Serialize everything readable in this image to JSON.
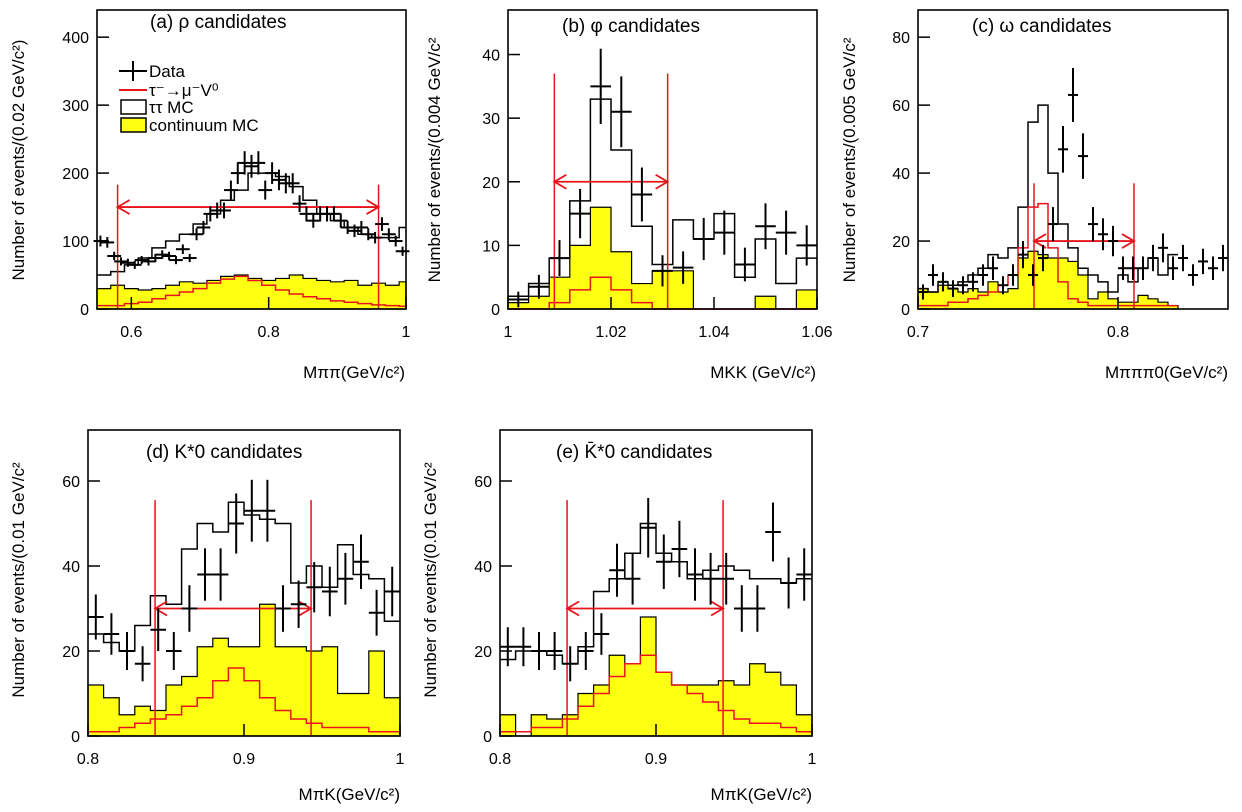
{
  "colors": {
    "data": "#000000",
    "signal_mc": "#e8141c",
    "tautau_mc": "#000000",
    "continuum_fill": "#ffff14",
    "continuum_edge": "#000000",
    "signal_window": "#e8141c"
  },
  "legend": {
    "data_label": "Data",
    "signal_label": "τ⁻→μ⁻V⁰",
    "tautau_label": "ττ MC",
    "continuum_label": "continuum MC"
  },
  "chart_data": [
    {
      "panel": "a",
      "type": "histogram",
      "title": "(a) ρ candidates",
      "xlabel": "Mππ(GeV/c²)",
      "ylabel": "Number of events/(0.02 GeV/c²)",
      "xlim": [
        0.55,
        1.0
      ],
      "ylim": [
        0,
        440
      ],
      "bin_width": 0.02,
      "xticks": [
        "0.6",
        "0.8",
        "1"
      ],
      "yticks": [
        "0",
        "100",
        "200",
        "300",
        "400"
      ],
      "signal_window": [
        0.58,
        0.96
      ],
      "window_arrow_y": 150,
      "data": {
        "x": [
          0.555,
          0.565,
          0.575,
          0.585,
          0.595,
          0.605,
          0.615,
          0.625,
          0.635,
          0.645,
          0.655,
          0.665,
          0.675,
          0.685,
          0.695,
          0.705,
          0.715,
          0.725,
          0.735,
          0.745,
          0.755,
          0.765,
          0.775,
          0.785,
          0.795,
          0.805,
          0.815,
          0.825,
          0.835,
          0.845,
          0.855,
          0.865,
          0.875,
          0.885,
          0.895,
          0.905,
          0.915,
          0.925,
          0.935,
          0.945,
          0.955,
          0.965,
          0.975,
          0.985,
          0.995
        ],
        "y": [
          100,
          98,
          78,
          70,
          68,
          65,
          72,
          70,
          75,
          80,
          78,
          72,
          88,
          75,
          110,
          120,
          140,
          145,
          145,
          175,
          200,
          215,
          210,
          215,
          175,
          200,
          190,
          185,
          185,
          155,
          140,
          130,
          140,
          140,
          140,
          130,
          120,
          115,
          120,
          110,
          105,
          125,
          110,
          100,
          85
        ]
      },
      "tautau_mc": [
        50,
        55,
        65,
        75,
        90,
        100,
        110,
        125,
        140,
        160,
        175,
        200,
        200,
        195,
        180,
        160,
        140,
        130,
        120,
        110,
        105,
        105,
        120
      ],
      "continuum_mc": [
        30,
        35,
        30,
        28,
        30,
        35,
        40,
        38,
        42,
        48,
        50,
        45,
        42,
        45,
        50,
        45,
        42,
        40,
        42,
        35,
        38,
        35,
        40
      ],
      "signal_mc": [
        5,
        5,
        8,
        10,
        15,
        20,
        25,
        30,
        38,
        44,
        48,
        42,
        35,
        28,
        22,
        18,
        15,
        12,
        10,
        8,
        6,
        5,
        4
      ]
    },
    {
      "panel": "b",
      "type": "histogram",
      "title": "(b) φ candidates",
      "xlabel": "MKK (GeV/c²)",
      "ylabel": "Number of events/(0.004 GeV/c²",
      "xlim": [
        1.0,
        1.06
      ],
      "ylim": [
        0,
        47
      ],
      "bin_width": 0.004,
      "xticks": [
        "1",
        "1.02",
        "1.04",
        "1.06"
      ],
      "yticks": [
        "0",
        "10",
        "20",
        "30",
        "40"
      ],
      "signal_window": [
        1.009,
        1.031
      ],
      "window_arrow_y": 20,
      "data": {
        "x": [
          1.002,
          1.006,
          1.01,
          1.014,
          1.018,
          1.022,
          1.026,
          1.03,
          1.034,
          1.038,
          1.042,
          1.046,
          1.05,
          1.054,
          1.058
        ],
        "y": [
          1.5,
          3.5,
          8,
          15,
          35,
          31,
          18,
          6,
          6.5,
          11,
          12,
          7,
          13,
          12,
          10
        ]
      },
      "tautau_mc": [
        2,
        4,
        8,
        17,
        33,
        25,
        13,
        7,
        14,
        11,
        15,
        5,
        11,
        4,
        8
      ],
      "continuum_mc": [
        1,
        2,
        5,
        10,
        16,
        9,
        4,
        6,
        6,
        0,
        0,
        0,
        2,
        0,
        3
      ],
      "signal_mc": [
        0,
        0,
        1,
        3,
        5,
        3,
        1,
        0,
        0,
        0,
        0,
        0,
        0,
        0,
        0
      ]
    },
    {
      "panel": "c",
      "type": "histogram",
      "title": "(c) ω candidates",
      "xlabel": "Mπππ0(GeV/c²)",
      "ylabel": "Number of events/(0.005 GeV/c²",
      "xlim": [
        0.7,
        0.855
      ],
      "ylim": [
        0,
        88
      ],
      "bin_width": 0.005,
      "xticks": [
        "0.7",
        "0.8"
      ],
      "yticks": [
        "0",
        "20",
        "40",
        "60",
        "80"
      ],
      "signal_window": [
        0.758,
        0.808
      ],
      "window_arrow_y": 20,
      "data": {
        "x": [
          0.7025,
          0.7075,
          0.7125,
          0.7175,
          0.7225,
          0.7275,
          0.7325,
          0.7375,
          0.7425,
          0.7475,
          0.7525,
          0.7575,
          0.7625,
          0.7675,
          0.7725,
          0.7775,
          0.7825,
          0.7875,
          0.7925,
          0.7975,
          0.8025,
          0.8075,
          0.8125,
          0.8175,
          0.8225,
          0.8275,
          0.8325,
          0.8375,
          0.8425,
          0.8475,
          0.8525
        ],
        "y": [
          5,
          10,
          8,
          6,
          7,
          8,
          10,
          12,
          7,
          10,
          16,
          10,
          15,
          25,
          47,
          63,
          45,
          25,
          22,
          20,
          12,
          12,
          12,
          15,
          18,
          12,
          15,
          10,
          14,
          12,
          15
        ]
      },
      "tautau_mc": [
        6,
        5,
        8,
        7,
        8,
        10,
        12,
        16,
        15,
        18,
        30,
        55,
        60,
        40,
        25,
        18,
        12,
        10,
        8,
        5,
        10,
        8,
        12,
        15,
        10,
        16
      ],
      "continuum_mc": [
        6,
        5,
        7,
        6,
        5,
        6,
        5,
        8,
        5,
        6,
        15,
        17,
        16,
        15,
        15,
        14,
        10,
        3,
        5,
        3,
        2,
        2,
        4,
        3,
        2,
        1
      ],
      "signal_mc": [
        1,
        1,
        1,
        2,
        2,
        3,
        4,
        5,
        7,
        10,
        18,
        30,
        31,
        18,
        8,
        3,
        2,
        1,
        1,
        1,
        1,
        1,
        1,
        1,
        1,
        1
      ]
    },
    {
      "panel": "d",
      "type": "histogram",
      "title": "(d) K*0 candidates",
      "xlabel": "MπK(GeV/c²)",
      "ylabel": "Number of events/(0.01 GeV/c²",
      "xlim": [
        0.8,
        1.0
      ],
      "ylim": [
        0,
        72
      ],
      "bin_width": 0.01,
      "xticks": [
        "0.8",
        "0.9",
        "1"
      ],
      "yticks": [
        "0",
        "20",
        "40",
        "60"
      ],
      "signal_window": [
        0.843,
        0.943
      ],
      "window_arrow_y": 30,
      "data": {
        "x": [
          0.805,
          0.815,
          0.825,
          0.835,
          0.845,
          0.855,
          0.865,
          0.875,
          0.885,
          0.895,
          0.905,
          0.915,
          0.925,
          0.935,
          0.945,
          0.955,
          0.965,
          0.975,
          0.985,
          0.995
        ],
        "y": [
          28,
          24,
          20,
          17,
          25,
          20,
          30,
          38,
          38,
          50,
          53,
          53,
          30,
          31,
          35,
          34,
          37,
          41,
          29,
          34
        ]
      },
      "tautau_mc": [
        24,
        22,
        20,
        26,
        33,
        31,
        44,
        50,
        48,
        55,
        52,
        51,
        50,
        36,
        40,
        35,
        45,
        38,
        37,
        27
      ],
      "continuum_mc": [
        12,
        9,
        5,
        7,
        6,
        12,
        14,
        21,
        23,
        21,
        21,
        31,
        21,
        21,
        20,
        21,
        10,
        10,
        20,
        9
      ],
      "signal_mc": [
        1,
        1,
        2,
        3,
        4,
        5,
        7,
        9,
        13,
        16,
        13,
        9,
        6,
        4,
        3,
        2,
        2,
        2,
        1,
        1
      ]
    },
    {
      "panel": "e",
      "type": "histogram",
      "title": "(e) K̄*0 candidates",
      "xlabel": "MπK(GeV/c²)",
      "ylabel": "Number of events/(0.01 GeV/c²",
      "xlim": [
        0.8,
        1.0
      ],
      "ylim": [
        0,
        72
      ],
      "bin_width": 0.01,
      "xticks": [
        "0.8",
        "0.9",
        "1"
      ],
      "yticks": [
        "0",
        "20",
        "40",
        "60"
      ],
      "signal_window": [
        0.843,
        0.943
      ],
      "window_arrow_y": 30,
      "data": {
        "x": [
          0.805,
          0.815,
          0.825,
          0.835,
          0.845,
          0.855,
          0.865,
          0.875,
          0.885,
          0.895,
          0.905,
          0.915,
          0.925,
          0.935,
          0.945,
          0.955,
          0.965,
          0.975,
          0.985,
          0.995
        ],
        "y": [
          21,
          21,
          20,
          20,
          17,
          20,
          24,
          39,
          37,
          49,
          41,
          44,
          38,
          37,
          37,
          30,
          30,
          48,
          36,
          38
        ]
      },
      "tautau_mc": [
        18,
        20,
        20,
        19,
        17,
        21,
        34,
        37,
        43,
        50,
        43,
        41,
        37,
        39,
        40,
        39,
        37,
        37,
        36,
        37
      ],
      "continuum_mc": [
        5,
        0,
        5,
        4,
        5,
        10,
        12,
        19,
        17,
        28,
        15,
        12,
        12,
        12,
        13,
        12,
        17,
        15,
        12,
        5
      ],
      "signal_mc": [
        1,
        1,
        2,
        2,
        4,
        7,
        10,
        14,
        17,
        19,
        15,
        12,
        10,
        8,
        6,
        4,
        3,
        3,
        2,
        1
      ]
    }
  ]
}
